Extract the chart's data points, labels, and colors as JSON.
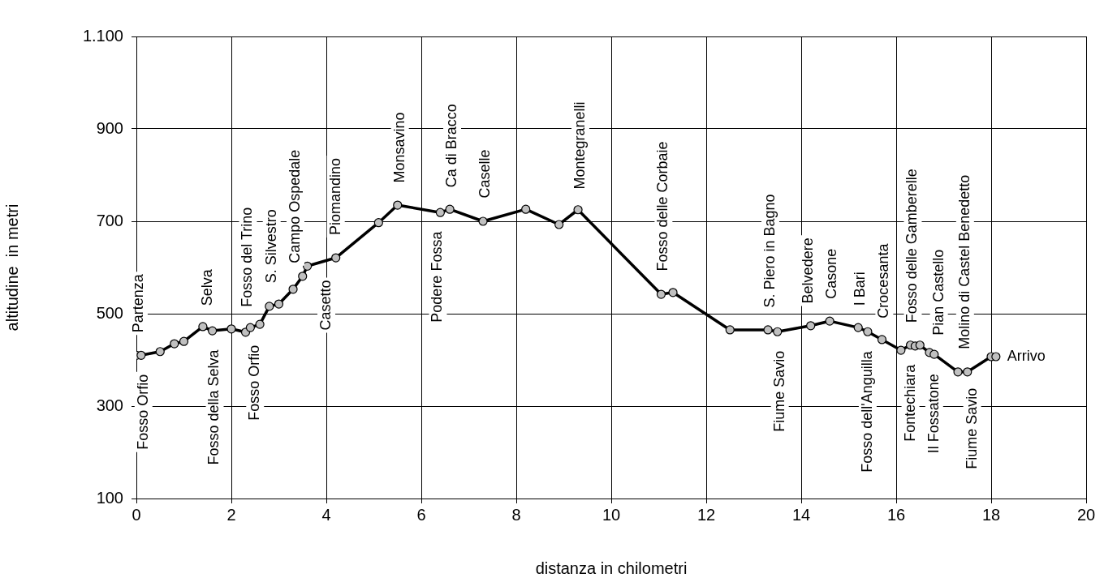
{
  "chart_data": {
    "type": "line",
    "xlabel": "distanza in chilometri",
    "ylabel": "altitudine  in metri",
    "x": [
      0,
      0.1,
      0.5,
      0.8,
      1.0,
      1.4,
      1.6,
      2.0,
      2.3,
      2.4,
      2.6,
      2.8,
      3.0,
      3.3,
      3.5,
      3.6,
      4.2,
      5.1,
      5.5,
      6.4,
      6.6,
      7.3,
      8.2,
      8.9,
      9.3,
      11.05,
      11.3,
      12.5,
      13.3,
      13.5,
      14.2,
      14.6,
      15.2,
      15.4,
      15.7,
      16.1,
      16.3,
      16.4,
      16.5,
      16.7,
      16.8,
      17.3,
      17.5,
      18.0,
      18.1
    ],
    "series": [
      {
        "color": "#000000",
        "values": [
          410,
          410,
          418,
          435,
          440,
          472,
          463,
          467,
          460,
          470,
          477,
          516,
          521,
          553,
          581,
          603,
          621,
          697,
          735,
          719,
          726,
          700,
          726,
          693,
          725,
          542,
          546,
          465,
          465,
          461,
          474,
          484,
          470,
          461,
          444,
          421,
          432,
          430,
          432,
          416,
          412,
          374,
          374,
          407,
          407
        ]
      }
    ],
    "marker": "circle",
    "line_style": "solid",
    "grid": true,
    "legend": false,
    "xlim": [
      0,
      20
    ],
    "xticks": [
      0,
      2,
      4,
      6,
      8,
      10,
      12,
      14,
      16,
      18,
      20
    ],
    "ylim": [
      100,
      1100
    ],
    "yticks": [
      100,
      300,
      500,
      700,
      900,
      {
        "value": 1100,
        "label": "1.100"
      }
    ],
    "annotations": [
      {
        "text": "Partenza",
        "x": 0.05,
        "y": 410
      },
      {
        "text": "Selva",
        "x": 1.5,
        "y": 468
      },
      {
        "text": "Fosso del Trino",
        "x": 2.35,
        "y": 465
      },
      {
        "text": "S. Silvestro",
        "x": 2.85,
        "y": 517
      },
      {
        "text": "Campo Ospedale",
        "x": 3.35,
        "y": 560
      },
      {
        "text": "Piomandino",
        "x": 4.2,
        "y": 621
      },
      {
        "text": "Monsavino",
        "x": 5.55,
        "y": 734
      },
      {
        "text": "Ca di Bracco",
        "x": 6.65,
        "y": 724
      },
      {
        "text": "Caselle",
        "x": 7.35,
        "y": 701
      },
      {
        "text": "Montegranelli",
        "x": 9.35,
        "y": 720
      },
      {
        "text": "Fosso delle Corbaie",
        "x": 11.1,
        "y": 543
      },
      {
        "text": "S. Piero in Bagno",
        "x": 13.35,
        "y": 464
      },
      {
        "text": "Belvedere",
        "x": 14.15,
        "y": 473
      },
      {
        "text": "Casone",
        "x": 14.65,
        "y": 483
      },
      {
        "text": "I Bari",
        "x": 15.25,
        "y": 468
      },
      {
        "text": "Crocesanta",
        "x": 15.75,
        "y": 441
      },
      {
        "text": "Fosso delle Gamberelle",
        "x": 16.35,
        "y": 431
      },
      {
        "text": "Pian Castello",
        "x": 16.9,
        "y": 404
      },
      {
        "text": "Molino di Castel Benedetto",
        "x": 17.45,
        "y": 374
      },
      {
        "text": "Fosso Orfio",
        "x": 0.15,
        "y": 411
      },
      {
        "text": "Fosso della Selva",
        "x": 1.65,
        "y": 464
      },
      {
        "text": "Fosso Orfio",
        "x": 2.5,
        "y": 474
      },
      {
        "text": "Casetto",
        "x": 4.0,
        "y": 615
      },
      {
        "text": "Podere Fossa",
        "x": 6.35,
        "y": 720
      },
      {
        "text": "Fiume Savio",
        "x": 13.55,
        "y": 462
      },
      {
        "text": "Fosso dell'Anguilla",
        "x": 15.4,
        "y": 461
      },
      {
        "text": "Fontechiara",
        "x": 16.3,
        "y": 432
      },
      {
        "text": "Il Fossatone",
        "x": 16.8,
        "y": 412
      },
      {
        "text": "Fiume Savio",
        "x": 17.6,
        "y": 381
      },
      {
        "text": "Arrivo",
        "x": 18.1,
        "y": 407
      }
    ]
  }
}
